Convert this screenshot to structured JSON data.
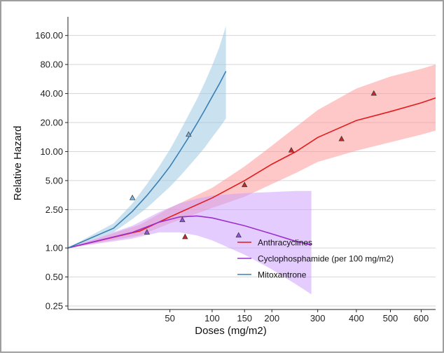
{
  "chart_data": {
    "type": "line",
    "title": "",
    "xlabel": "Doses (mg/m2)",
    "ylabel": "Relative Hazard",
    "xlim": [
      0,
      650
    ],
    "ylim": [
      0.23,
      250
    ],
    "yscale": "log",
    "xscale": "sqrt",
    "grid": "horizontal",
    "legend_position": "lower-center",
    "x_ticks": [
      {
        "value": 50,
        "label": "50"
      },
      {
        "value": 100,
        "label": "100"
      },
      {
        "value": 150,
        "label": "150"
      },
      {
        "value": 200,
        "label": "200"
      },
      {
        "value": 300,
        "label": "300"
      },
      {
        "value": 400,
        "label": "400"
      },
      {
        "value": 500,
        "label": "500"
      },
      {
        "value": 600,
        "label": "600"
      }
    ],
    "y_ticks": [
      {
        "value": 0.25,
        "label": "0.25"
      },
      {
        "value": 0.5,
        "label": "0.50"
      },
      {
        "value": 1,
        "label": "1.00"
      },
      {
        "value": 2.5,
        "label": "2.50"
      },
      {
        "value": 5,
        "label": "5.00"
      },
      {
        "value": 10,
        "label": "10.00"
      },
      {
        "value": 20,
        "label": "20.00"
      },
      {
        "value": 40,
        "label": "40.00"
      },
      {
        "value": 80,
        "label": "80.00"
      },
      {
        "value": 160,
        "label": "160.00"
      }
    ],
    "series": [
      {
        "name": "Anthracyclines",
        "color": "#e41a1c",
        "band_color": "#fb9a99",
        "band_opacity": 0.55,
        "marker_fill": "#c62828",
        "curve": {
          "x": [
            0,
            25,
            50,
            100,
            150,
            200,
            250,
            300,
            400,
            500,
            600,
            650
          ],
          "y": [
            1.0,
            1.5,
            2.1,
            3.3,
            5.0,
            7.4,
            10.0,
            14.0,
            21.0,
            26.0,
            32.0,
            36.0
          ]
        },
        "band": {
          "x": [
            0,
            25,
            50,
            100,
            150,
            200,
            250,
            300,
            400,
            500,
            600,
            650
          ],
          "lower": [
            1.0,
            1.35,
            1.8,
            2.6,
            3.4,
            4.6,
            6.0,
            7.8,
            10.2,
            12.5,
            15.0,
            16.5
          ],
          "upper": [
            1.0,
            1.75,
            2.6,
            4.2,
            7.0,
            11.5,
            18.0,
            27.0,
            45.0,
            60.0,
            72.0,
            80.0
          ]
        },
        "points": {
          "x": [
            66,
            150,
            240,
            360,
            450
          ],
          "y": [
            1.3,
            4.5,
            10.3,
            13.5,
            40.0
          ]
        }
      },
      {
        "name": "Cyclophosphamide (per 100 mg/m2)",
        "color": "#9b30d0",
        "band_color": "#cc99ff",
        "band_opacity": 0.5,
        "marker_fill": "#8f55e0",
        "curve": {
          "x": [
            0,
            20,
            40,
            60,
            80,
            100,
            150,
            200,
            250,
            285
          ],
          "y": [
            1.0,
            1.45,
            1.85,
            2.1,
            2.15,
            2.05,
            1.7,
            1.4,
            1.17,
            1.08
          ]
        },
        "band": {
          "x": [
            0,
            20,
            40,
            60,
            80,
            100,
            150,
            200,
            250,
            285
          ],
          "lower": [
            1.0,
            1.25,
            1.45,
            1.45,
            1.35,
            1.2,
            0.85,
            0.6,
            0.42,
            0.33
          ],
          "upper": [
            1.0,
            1.7,
            2.35,
            2.9,
            3.25,
            3.5,
            3.7,
            3.8,
            3.9,
            3.9
          ]
        },
        "points": {
          "x": [
            30,
            63,
            140
          ],
          "y": [
            1.45,
            1.95,
            1.35
          ]
        }
      },
      {
        "name": "Mitoxantrone",
        "color": "#3a7fb5",
        "band_color": "#9ecae1",
        "band_opacity": 0.55,
        "marker_fill": "#7fb5dc",
        "curve": {
          "x": [
            0,
            10,
            20,
            30,
            40,
            50,
            60,
            70,
            80,
            90,
            100,
            110,
            120
          ],
          "y": [
            1.0,
            1.6,
            2.4,
            3.5,
            5.0,
            7.0,
            10.0,
            14.0,
            19.5,
            27.0,
            37.0,
            50.0,
            68.0
          ]
        },
        "band": {
          "x": [
            0,
            10,
            20,
            30,
            40,
            50,
            60,
            70,
            80,
            90,
            100,
            110,
            120
          ],
          "lower": [
            1.0,
            1.45,
            2.0,
            2.6,
            3.4,
            4.3,
            5.5,
            7.0,
            8.8,
            11.0,
            14.0,
            17.5,
            22.0
          ],
          "upper": [
            1.0,
            1.8,
            2.9,
            4.6,
            7.0,
            10.5,
            16.0,
            24.0,
            35.0,
            52.0,
            78.0,
            120.0,
            200.0
          ]
        },
        "points": {
          "x": [
            20,
            70
          ],
          "y": [
            3.3,
            15.0
          ]
        }
      }
    ]
  }
}
